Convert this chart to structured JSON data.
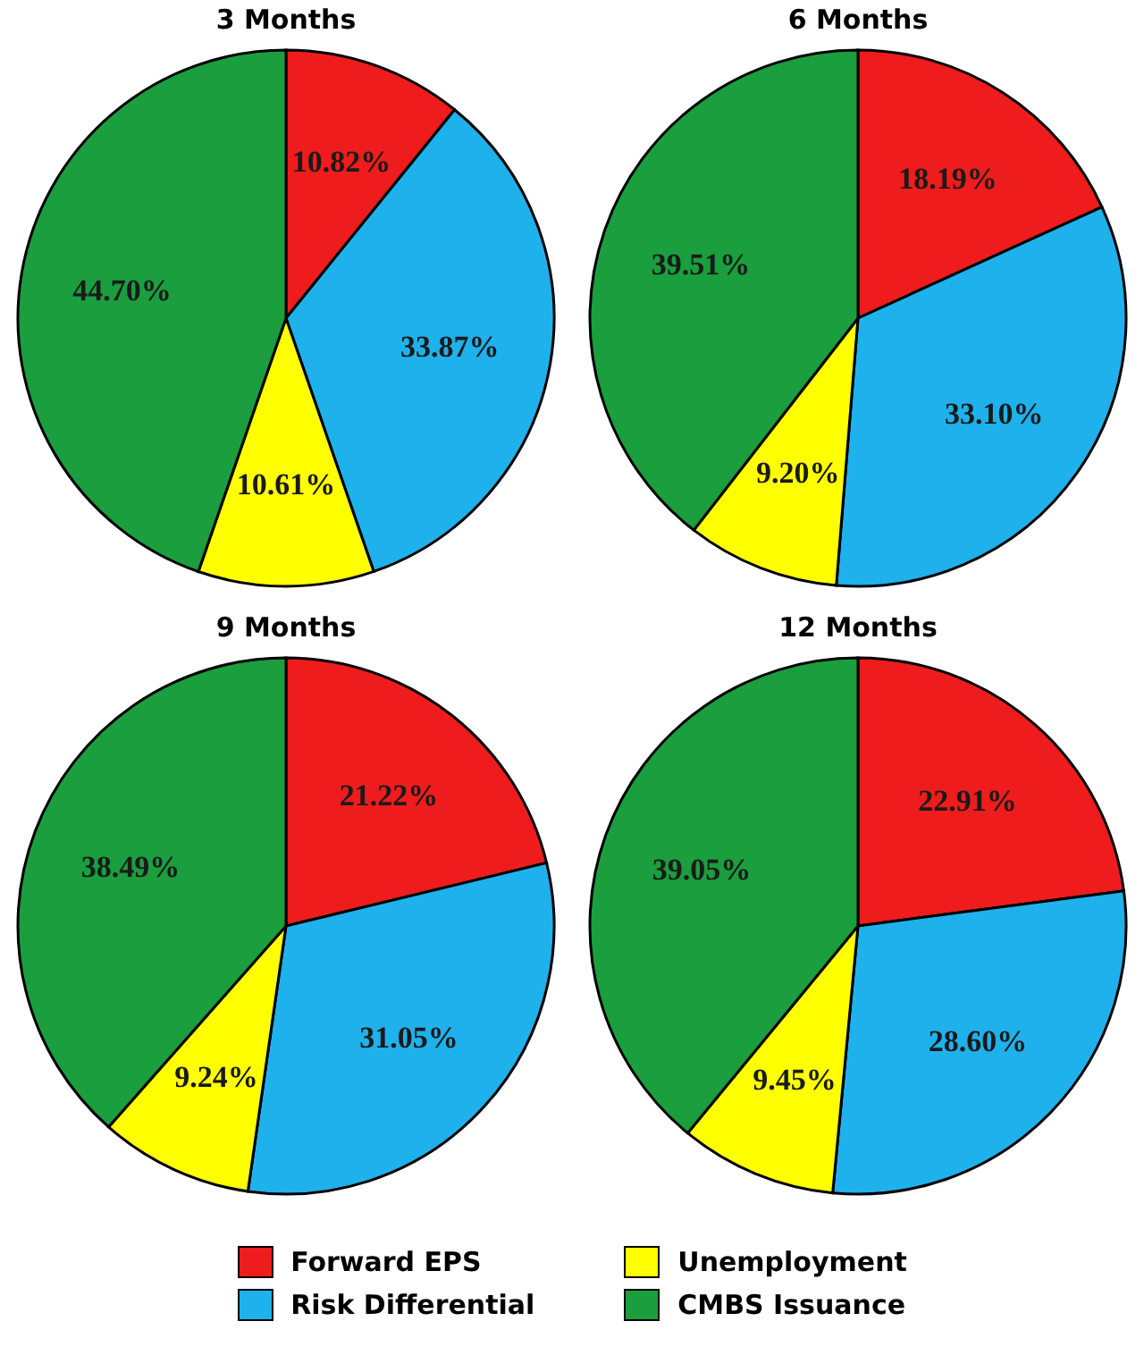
{
  "chart_data": [
    {
      "type": "pie",
      "title": "3 Months",
      "categories": [
        "Forward EPS",
        "Risk Differential",
        "Unemployment",
        "CMBS Issuance"
      ],
      "values": [
        10.82,
        33.87,
        10.61,
        44.7
      ],
      "colors": [
        "#ee1c1c",
        "#1fb1ec",
        "#ffff00",
        "#1a9e3e"
      ],
      "value_labels": [
        "10.82%",
        "33.87%",
        "10.61%",
        "44.70%"
      ],
      "legend": "bottom"
    },
    {
      "type": "pie",
      "title": "6 Months",
      "categories": [
        null,
        null,
        null,
        null
      ],
      "values": [
        18.19,
        33.1,
        9.2,
        39.51
      ],
      "colors": [
        "#ee1c1c",
        "#1fb1ec",
        "#ffff00",
        "#1a9e3e"
      ],
      "value_labels": [
        "18.19%",
        "33.10%",
        "9.20%",
        "39.51%"
      ]
    },
    {
      "type": "pie",
      "title": "9 Months",
      "categories": [
        null,
        null,
        null,
        null
      ],
      "values": [
        21.22,
        31.05,
        9.24,
        38.49
      ],
      "colors": [
        "#ee1c1c",
        "#1fb1ec",
        "#ffff00",
        "#1a9e3e"
      ],
      "value_labels": [
        "21.22%",
        "31.05%",
        "9.24%",
        "38.49%"
      ]
    },
    {
      "type": "pie",
      "title": "12 Months",
      "categories": [
        null,
        null,
        null,
        null
      ],
      "values": [
        22.91,
        28.6,
        9.45,
        39.05
      ],
      "colors": [
        "#ee1c1c",
        "#1fb1ec",
        "#ffff00",
        "#1a9e3e"
      ],
      "value_labels": [
        "22.91%",
        "28.60%",
        "9.45%",
        "39.05%"
      ]
    }
  ]
}
